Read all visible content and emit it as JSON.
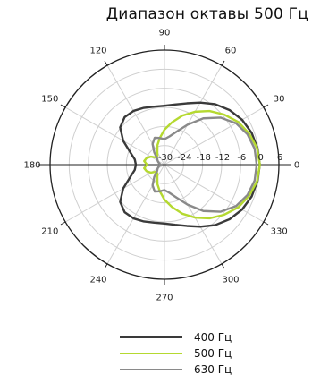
{
  "chart_data": {
    "type": "polar-line",
    "title": "Диапазон октавы 500 Гц",
    "angle_labels": [
      "0",
      "30",
      "60",
      "90",
      "120",
      "150",
      "180",
      "210",
      "240",
      "270",
      "300",
      "330"
    ],
    "angles_deg": [
      0,
      30,
      60,
      90,
      120,
      150,
      180,
      210,
      240,
      270,
      300,
      330
    ],
    "radial_labels": [
      "-30",
      "-24",
      "-18",
      "-12",
      "-6",
      "0",
      "6"
    ],
    "rlim": [
      -30,
      6
    ],
    "series": [
      {
        "name": "400 Гц",
        "color": "#3a3a3a",
        "theta": [
          0,
          10,
          20,
          30,
          40,
          50,
          60,
          70,
          80,
          90,
          100,
          110,
          120,
          130,
          140,
          150,
          160,
          170,
          180,
          190,
          200,
          210,
          220,
          230,
          240,
          250,
          260,
          270,
          280,
          290,
          300,
          310,
          320,
          330,
          340,
          350
        ],
        "r": [
          0,
          -0.3,
          -0.8,
          -1.8,
          -3.3,
          -5.2,
          -7.5,
          -9.5,
          -10.8,
          -11.5,
          -11.5,
          -11.0,
          -10.5,
          -10.5,
          -11.8,
          -15.0,
          -18.5,
          -20.5,
          -21.0,
          -20.5,
          -18.5,
          -15.0,
          -11.8,
          -10.5,
          -10.5,
          -11.0,
          -11.5,
          -11.5,
          -10.8,
          -9.5,
          -7.5,
          -5.2,
          -3.3,
          -1.8,
          -0.8,
          -0.3
        ]
      },
      {
        "name": "500 Гц",
        "color": "#b5d930",
        "theta": [
          0,
          10,
          20,
          30,
          40,
          50,
          60,
          70,
          80,
          90,
          100,
          110,
          120,
          130,
          140,
          150,
          160,
          170,
          180,
          190,
          200,
          210,
          220,
          230,
          240,
          250,
          260,
          270,
          280,
          290,
          300,
          310,
          320,
          330,
          340,
          350
        ],
        "r": [
          0,
          -0.4,
          -1.6,
          -3.2,
          -5.5,
          -8.0,
          -10.8,
          -13.6,
          -16.5,
          -19.0,
          -21.5,
          -23.5,
          -25.5,
          -26.5,
          -26.5,
          -25.0,
          -24.0,
          -23.5,
          -24.5,
          -23.5,
          -24.0,
          -25.0,
          -26.5,
          -26.5,
          -25.5,
          -23.5,
          -21.5,
          -19.0,
          -16.5,
          -13.6,
          -10.8,
          -8.0,
          -5.5,
          -3.2,
          -1.6,
          -0.4
        ]
      },
      {
        "name": "630 Гц",
        "color": "#8a8a8a",
        "theta": [
          0,
          10,
          20,
          30,
          40,
          50,
          60,
          70,
          80,
          90,
          100,
          110,
          120,
          130,
          140,
          150,
          160,
          170,
          180,
          190,
          200,
          210,
          220,
          230,
          240,
          250,
          260,
          270,
          280,
          290,
          300,
          310,
          320,
          330,
          340,
          350
        ],
        "r": [
          -1.0,
          -1.2,
          -2.2,
          -4.0,
          -7.0,
          -11.0,
          -15.5,
          -19.0,
          -21.0,
          -22.0,
          -21.5,
          -21.0,
          -22.5,
          -25.0,
          -27.0,
          -27.5,
          -28.0,
          -28.5,
          -28.5,
          -28.5,
          -28.0,
          -27.5,
          -27.0,
          -25.0,
          -22.5,
          -21.0,
          -21.5,
          -22.0,
          -21.0,
          -19.0,
          -15.5,
          -11.0,
          -7.0,
          -4.0,
          -2.2,
          -1.2
        ]
      }
    ],
    "legend_position": "bottom-center",
    "grid": true
  }
}
